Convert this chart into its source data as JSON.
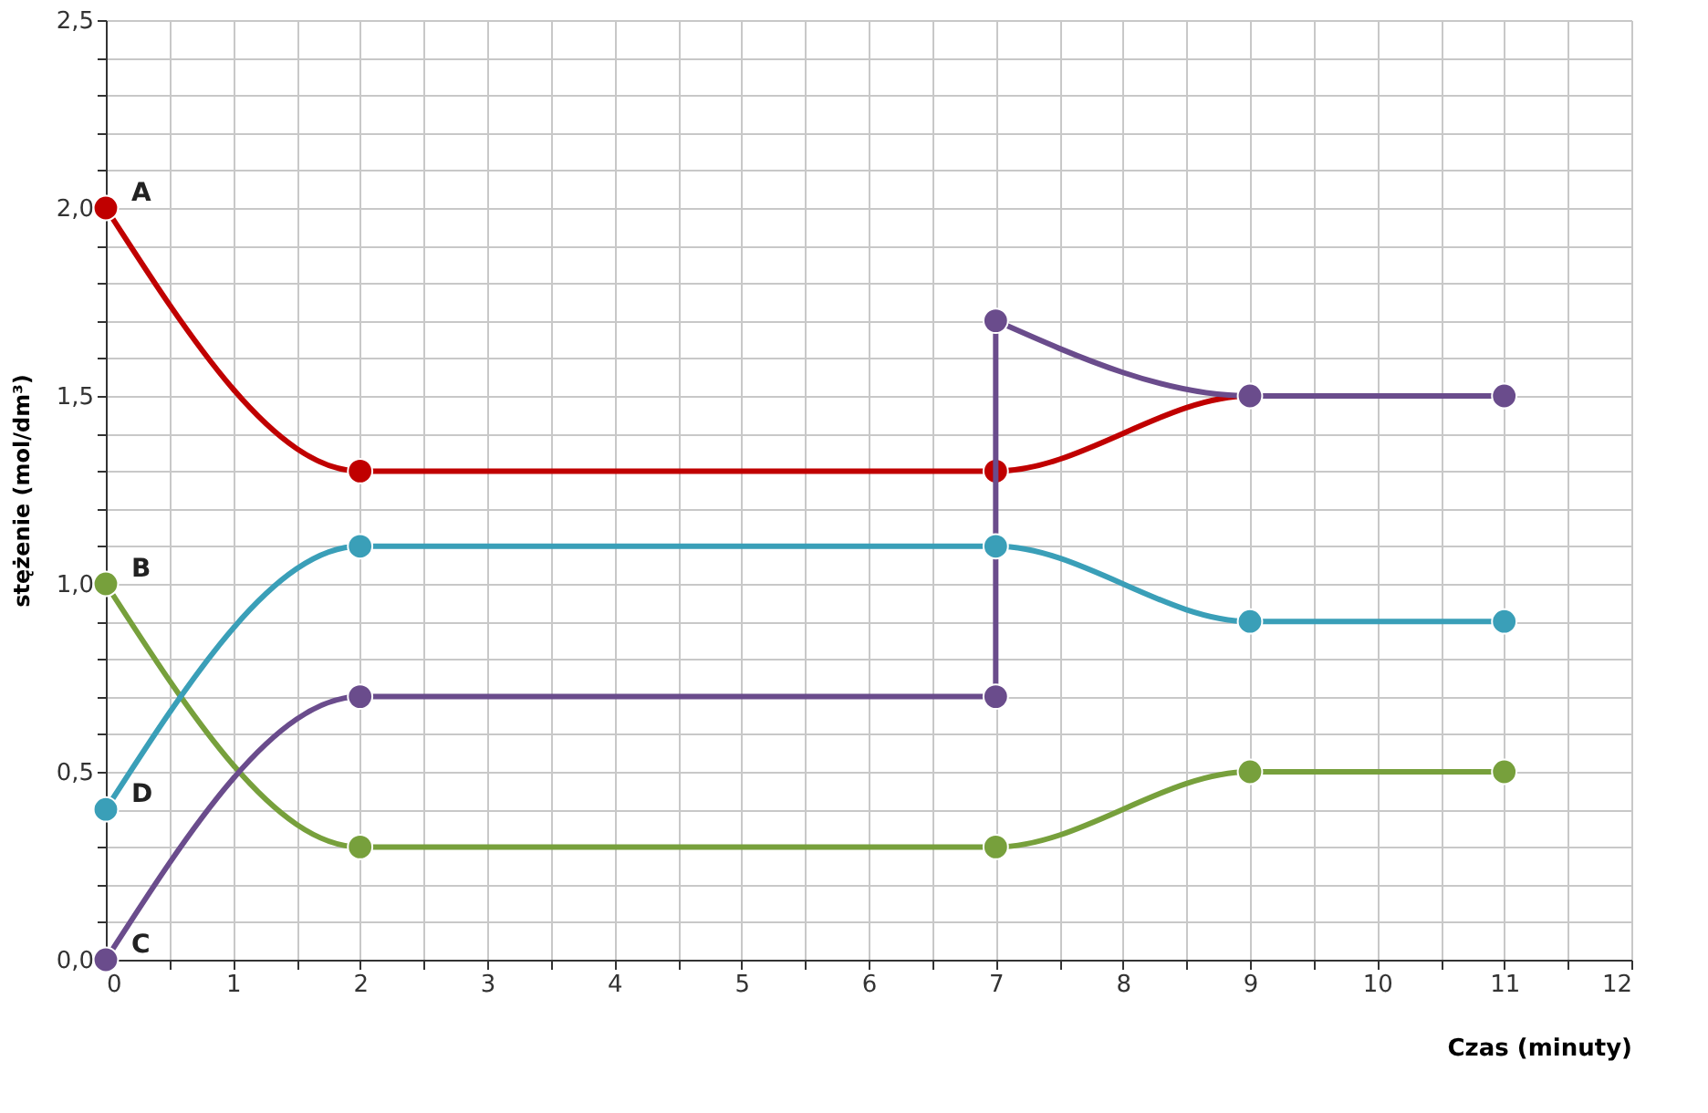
{
  "chart_data": {
    "type": "line",
    "xlabel": "Czas (minuty)",
    "ylabel": "stężenie (mol/dm³)",
    "series": [
      {
        "name": "A",
        "color": "#c00000",
        "x": [
          0,
          2,
          7,
          9,
          11
        ],
        "values": [
          2.0,
          1.3,
          1.3,
          1.5,
          1.5
        ]
      },
      {
        "name": "B",
        "color": "#77a03c",
        "x": [
          0,
          2,
          7,
          9,
          11
        ],
        "values": [
          1.0,
          0.3,
          0.3,
          0.5,
          0.5
        ]
      },
      {
        "name": "C",
        "color": "#6a4c8c",
        "x": [
          0,
          2,
          7,
          7,
          9,
          11
        ],
        "values": [
          0.0,
          0.7,
          0.7,
          1.7,
          1.5,
          1.5
        ]
      },
      {
        "name": "D",
        "color": "#3a9fb8",
        "x": [
          0,
          2,
          7,
          9,
          11
        ],
        "values": [
          0.4,
          1.1,
          1.1,
          0.9,
          0.9
        ]
      }
    ],
    "xlim": [
      0,
      12
    ],
    "ylim": [
      0,
      2.5
    ],
    "xticks": [
      0,
      {
        "value": 0.5,
        "label": null
      },
      1,
      {
        "value": 1.5,
        "label": null
      },
      2,
      {
        "value": 2.5,
        "label": null
      },
      3,
      {
        "value": 3.5,
        "label": null
      },
      4,
      {
        "value": 4.5,
        "label": null
      },
      5,
      {
        "value": 5.5,
        "label": null
      },
      6,
      {
        "value": 6.5,
        "label": null
      },
      7,
      {
        "value": 7.5,
        "label": null
      },
      8,
      {
        "value": 8.5,
        "label": null
      },
      9,
      {
        "value": 9.5,
        "label": null
      },
      10,
      {
        "value": 10.5,
        "label": null
      },
      11,
      {
        "value": 11.5,
        "label": null
      },
      12
    ],
    "yticks": [
      {
        "value": 0,
        "label": "0,0"
      },
      {
        "value": 0.1,
        "label": null
      },
      {
        "value": 0.2,
        "label": null
      },
      {
        "value": 0.3,
        "label": null
      },
      {
        "value": 0.4,
        "label": null
      },
      {
        "value": 0.5,
        "label": "0,5"
      },
      {
        "value": 0.6,
        "label": null
      },
      {
        "value": 0.7,
        "label": null
      },
      {
        "value": 0.8,
        "label": null
      },
      {
        "value": 0.9,
        "label": null
      },
      {
        "value": 1.0,
        "label": "1,0"
      },
      {
        "value": 1.1,
        "label": null
      },
      {
        "value": 1.2,
        "label": null
      },
      {
        "value": 1.3,
        "label": null
      },
      {
        "value": 1.4,
        "label": null
      },
      {
        "value": 1.5,
        "label": "1,5"
      },
      {
        "value": 1.6,
        "label": null
      },
      {
        "value": 1.7,
        "label": null
      },
      {
        "value": 1.8,
        "label": null
      },
      {
        "value": 1.9,
        "label": null
      },
      {
        "value": 2.0,
        "label": "2,0"
      },
      {
        "value": 2.1,
        "label": null
      },
      {
        "value": 2.2,
        "label": null
      },
      {
        "value": 2.3,
        "label": null
      },
      {
        "value": 2.4,
        "label": null
      },
      {
        "value": 2.5,
        "label": "2,5"
      }
    ],
    "grid": true,
    "marker": "circle",
    "line_style": "solid"
  }
}
